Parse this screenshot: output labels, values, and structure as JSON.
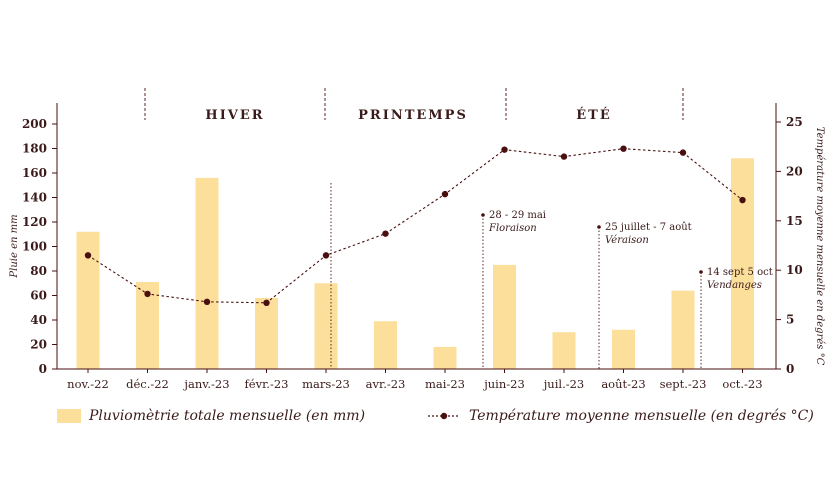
{
  "chart_data": {
    "type": "bar+line",
    "categories": [
      "nov.-22",
      "déc.-22",
      "janv.-23",
      "févr.-23",
      "mars-23",
      "avr.-23",
      "mai-23",
      "juin-23",
      "juil.-23",
      "août-23",
      "sept.-23",
      "oct.-23"
    ],
    "series": [
      {
        "name": "Pluviomètrie totale mensuelle (en mm)",
        "type": "bar",
        "axis": "left",
        "values": [
          112,
          71,
          156,
          58,
          70,
          39,
          18,
          85,
          30,
          32,
          64,
          172
        ]
      },
      {
        "name": "Température moyenne mensuelle (en degrés °C)",
        "type": "line",
        "axis": "right",
        "values": [
          11.5,
          7.6,
          6.8,
          6.7,
          11.5,
          13.7,
          17.7,
          22.2,
          21.5,
          22.3,
          21.9,
          17.1
        ]
      }
    ],
    "ylabel": "Pluie en mm",
    "ylim": [
      0,
      200
    ],
    "yticks": [
      0,
      20,
      40,
      60,
      80,
      100,
      120,
      140,
      160,
      180,
      200
    ],
    "y2label": "Température moyenne mensuelle en degrés °C",
    "y2lim": [
      0,
      25
    ],
    "y2ticks": [
      0,
      5,
      10,
      15,
      20,
      25
    ],
    "seasons": [
      "HIVER",
      "PRINTEMPS",
      "ÉTÉ"
    ],
    "annotations": [
      {
        "line1": "28 - 29 mai",
        "line2": "Floraison"
      },
      {
        "line1": "25 juillet - 7 août",
        "line2": "Véraison"
      },
      {
        "line1": "14 sept 5 oct",
        "line2": "Vendanges"
      }
    ],
    "colors": {
      "bar": "#fbdf9a",
      "line": "#4a1010",
      "text": "#3a1a1a"
    },
    "legend_position": "bottom"
  }
}
